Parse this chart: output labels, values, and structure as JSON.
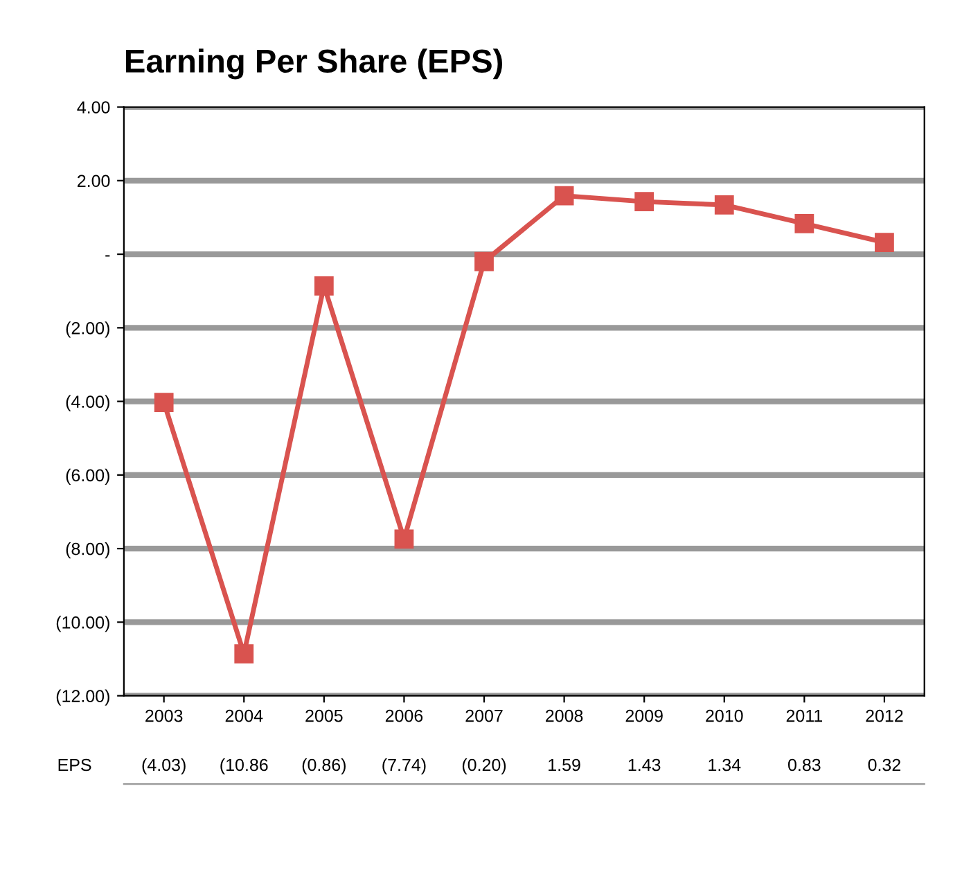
{
  "chart_data": {
    "type": "line",
    "title": "Earning Per Share (EPS)",
    "categories": [
      "2003",
      "2004",
      "2005",
      "2006",
      "2007",
      "2008",
      "2009",
      "2010",
      "2011",
      "2012"
    ],
    "series": [
      {
        "name": "EPS",
        "color": "#d9534f",
        "values": [
          -4.03,
          -10.86,
          -0.86,
          -7.74,
          -0.2,
          1.59,
          1.43,
          1.34,
          0.83,
          0.32
        ],
        "value_labels": [
          "(4.03)",
          "(10.86",
          "(0.86)",
          "(7.74)",
          "(0.20)",
          "1.59",
          "1.43",
          "1.34",
          "0.83",
          "0.32"
        ]
      }
    ],
    "ylim": [
      -12,
      4
    ],
    "yticks": [
      {
        "value": 4,
        "label": "4.00"
      },
      {
        "value": 2,
        "label": "2.00"
      },
      {
        "value": 0,
        "label": "-"
      },
      {
        "value": -2,
        "label": "(2.00)"
      },
      {
        "value": -4,
        "label": "(4.00)"
      },
      {
        "value": -6,
        "label": "(6.00)"
      },
      {
        "value": -8,
        "label": "(8.00)"
      },
      {
        "value": -10,
        "label": "(10.00)"
      },
      {
        "value": -12,
        "label": "(12.00)"
      }
    ],
    "grid": "y",
    "marker": "square",
    "line_style": "solid",
    "legend": false
  }
}
